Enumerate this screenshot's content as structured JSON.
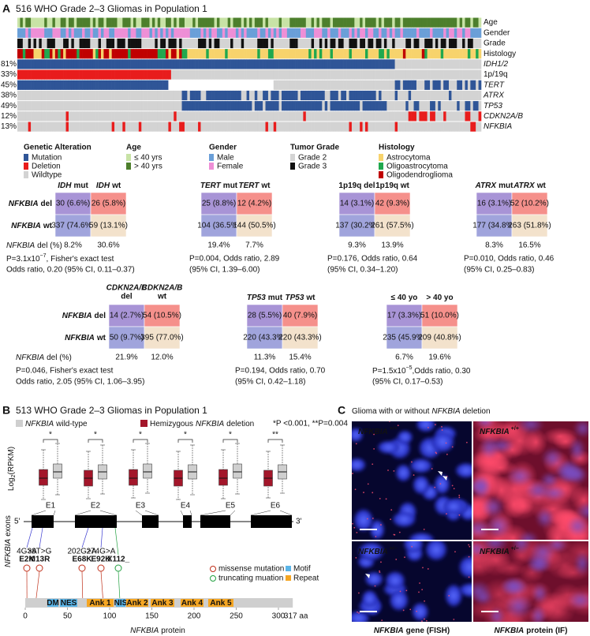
{
  "panel_a": {
    "letter": "A",
    "title": "516 WHO Grade 2–3 Gliomas in Population 1",
    "annotation_rows": [
      "Age",
      "Gender",
      "Grade",
      "Histology"
    ],
    "alteration_rows": [
      {
        "pct": "81%",
        "name": "IDH1/2"
      },
      {
        "pct": "33%",
        "name": "1p/19q"
      },
      {
        "pct": "45%",
        "name": "TERT"
      },
      {
        "pct": "38%",
        "name": "ATRX"
      },
      {
        "pct": "49%",
        "name": "TP53"
      },
      {
        "pct": "12%",
        "name": "CDKN2A/B"
      },
      {
        "pct": "13%",
        "name": "NFKBIA"
      }
    ],
    "legend": [
      {
        "title": "Genetic Alteration",
        "items": [
          "Mutation",
          "Deletion",
          "Wildtype"
        ]
      },
      {
        "title": "Age",
        "items": [
          "≤ 40 yrs",
          "> 40 yrs"
        ]
      },
      {
        "title": "Gender",
        "items": [
          "Male",
          "Female"
        ]
      },
      {
        "title": "Tumor Grade",
        "items": [
          "Grade 2",
          "Grade 3"
        ]
      },
      {
        "title": "Histology",
        "items": [
          "Astrocytoma",
          "Oligoastrocytoma",
          "Oligodendroglioma"
        ]
      }
    ],
    "tables": [
      {
        "col_headers": [
          {
            "gene": "IDH",
            "label": "mut"
          },
          {
            "gene": "IDH",
            "label": "wt"
          }
        ],
        "row_headers": [
          {
            "gene": "NFKBIA",
            "label": "del"
          },
          {
            "gene": "NFKBIA",
            "label": "wt"
          }
        ],
        "cells": [
          [
            "30 (6.6%)",
            "26 (5.8%)"
          ],
          [
            "337 (74.6%)",
            "59 (13.1%)"
          ]
        ],
        "pct_label": {
          "gene": "NFKBIA",
          "label": "del (%)"
        },
        "pct": [
          "8.2%",
          "30.6%"
        ],
        "stats": [
          {
            "pre": "P=3.1x10",
            "sup": "−7",
            "post": ", Fisher's exact test"
          },
          "Odds ratio, 0.20 (95% CI, 0.11–0.37)"
        ]
      },
      {
        "col_headers": [
          {
            "gene": "TERT",
            "label": "mut"
          },
          {
            "gene": "TERT",
            "label": "wt"
          }
        ],
        "cells": [
          [
            "25 (8.8%)",
            "12 (4.2%)"
          ],
          [
            "104 (36.5%)",
            "144 (50.5%)"
          ]
        ],
        "pct": [
          "19.4%",
          "7.7%"
        ],
        "stats": [
          "P=0.004, Odds ratio, 2.89",
          "(95% CI, 1.39–6.00)"
        ]
      },
      {
        "col_headers": [
          {
            "label": "1p19q del"
          },
          {
            "label": "1p19q wt"
          }
        ],
        "cells": [
          [
            "14 (3.1%)",
            "42 (9.3%)"
          ],
          [
            "137 (30.2%)",
            "261 (57.5%)"
          ]
        ],
        "pct": [
          "9.3%",
          "13.9%"
        ],
        "stats": [
          "P=0.176, Odds ratio, 0.64",
          "(95% CI, 0.34–1.20)"
        ]
      },
      {
        "col_headers": [
          {
            "gene": "ATRX",
            "label": "mut"
          },
          {
            "gene": "ATRX",
            "label": "wt"
          }
        ],
        "cells": [
          [
            "16 (3.1%)",
            "52 (10.2%)"
          ],
          [
            "177 (34.8%)",
            "263 (51.8%)"
          ]
        ],
        "pct": [
          "8.3%",
          "16.5%"
        ],
        "stats": [
          "P=0.010, Odds ratio, 0.46",
          "(95% CI, 0.25–0.83)"
        ]
      },
      {
        "col_headers": [
          {
            "gene": "CDKN2A/B",
            "label": "del"
          },
          {
            "gene": "CDKN2A/B",
            "label": "wt"
          }
        ],
        "row_headers": [
          {
            "gene": "NFKBIA",
            "label": "del"
          },
          {
            "gene": "NFKBIA",
            "label": "wt"
          }
        ],
        "cells": [
          [
            "14 (2.7%)",
            "54 (10.5%)"
          ],
          [
            "50 (9.7%)",
            "395 (77.0%)"
          ]
        ],
        "pct_label": {
          "gene": "NFKBIA",
          "label": "del (%)"
        },
        "pct": [
          "21.9%",
          "12.0%"
        ],
        "stats": [
          "P=0.046, Fisher's exact test",
          "Odds ratio, 2.05 (95% CI, 1.06–3.95)"
        ]
      },
      {
        "col_headers": [
          {
            "gene": "TP53",
            "label": "mut"
          },
          {
            "gene": "TP53",
            "label": "wt"
          }
        ],
        "cells": [
          [
            "28 (5.5%)",
            "40 (7.9%)"
          ],
          [
            "220 (43.3%)",
            "220 (43.3%)"
          ]
        ],
        "pct": [
          "11.3%",
          "15.4%"
        ],
        "stats": [
          "P=0.194, Odds ratio, 0.70",
          "(95% CI, 0.42–1.18)"
        ]
      },
      {
        "col_headers": [
          {
            "label": "≤ 40 yo"
          },
          {
            "label": "> 40 yo"
          }
        ],
        "cells": [
          [
            "17 (3.3%)",
            "51 (10.0%)"
          ],
          [
            "235 (45.9%)",
            "209 (40.8%)"
          ]
        ],
        "pct": [
          "6.7%",
          "19.6%"
        ],
        "stats": [
          {
            "pre": "P=1.5x10",
            "sup": "−5",
            "post": ",Odds ratio, 0.30"
          },
          "(95% CI, 0.17–0.53)"
        ]
      }
    ]
  },
  "panel_b": {
    "letter": "B",
    "title": "513 WHO Grade 2–3 Gliomas in Population 1",
    "legend": [
      {
        "gene": "NFKBIA",
        "label": "wild-type"
      },
      {
        "pre": "Hemizygous",
        "gene": "NFKBIA",
        "label": "deletion"
      }
    ],
    "significance_note": "*P <0.001, **P=0.004",
    "y_label": {
      "text": "Log",
      "sub": "2",
      "rest": "(RPKM)"
    },
    "exons": [
      "E1",
      "E2",
      "E3",
      "E4",
      "E5",
      "E6"
    ],
    "significance": [
      "*",
      "*",
      "*",
      "*",
      "*",
      "**"
    ],
    "five_prime": "5'",
    "three_prime": "3'",
    "exons_label": {
      "gene": "NFKBIA",
      "label": "exons"
    },
    "mutations": [
      {
        "nt": "4G>A",
        "aa": "E2K"
      },
      {
        "nt": "38T>G",
        "aa": "M13R"
      },
      {
        "nt": "202G>A",
        "aa": "E68K"
      },
      {
        "nt": "274G>A",
        "aa": "E92K"
      },
      {
        "aa": "X112_"
      }
    ],
    "mutation_legend": [
      "missense mutation",
      "truncating muation"
    ],
    "domain_legend": [
      "Motif",
      "Repeat"
    ],
    "domains": [
      "DM",
      "NES",
      "Ank 1",
      "NIS",
      "Ank 2",
      "Ank 3",
      "Ank 4",
      "Ank 5"
    ],
    "axis_ticks": [
      0,
      50,
      100,
      150,
      200,
      250,
      300
    ],
    "axis_end": "317 aa",
    "axis_label": {
      "gene": "NFKBIA",
      "label": "protein"
    }
  },
  "panel_c": {
    "letter": "C",
    "title": {
      "pre": "Glioma with or without",
      "gene": "NFKBIA",
      "label": "deletion"
    },
    "panels": [
      {
        "gene": "NFKBIA",
        "genotype": "+/+"
      },
      {
        "gene": "NFKBIA",
        "genotype": "+/+"
      },
      {
        "gene": "NFKBIA",
        "genotype": "+/–"
      },
      {
        "gene": "NFKBIA",
        "genotype": "+/–"
      }
    ],
    "captions": [
      {
        "gene": "NFKBIA",
        "label": "gene (FISH)"
      },
      {
        "gene": "NFKBIA",
        "label": "protein (IF)"
      }
    ]
  }
}
